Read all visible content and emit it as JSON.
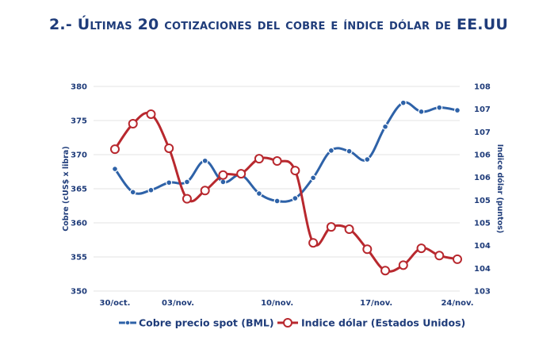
{
  "page": {
    "title_prefix": "2.- ",
    "title_main": "Últimas 20 cotizaciones del cobre e índice dólar de EE.UU"
  },
  "chart_data": {
    "type": "line",
    "title": "Últimas 20 cotizaciones del cobre e índice dólar de EE.UU",
    "x_tick_labels": [
      "30/oct.",
      "03/nov.",
      "10/nov.",
      "17/nov.",
      "24/nov."
    ],
    "x_tick_indices": [
      0,
      3.5,
      9,
      14.5,
      19
    ],
    "y_left": {
      "label": "Cobre (cUS$ x libra)",
      "range": [
        350,
        380
      ],
      "ticks": [
        350,
        355,
        360,
        365,
        370,
        375,
        380
      ],
      "tick_labels": [
        "350",
        "355",
        "360",
        "365",
        "370",
        "375",
        "380"
      ]
    },
    "y_right": {
      "label": "Indice dólar (puntos)",
      "range": [
        103,
        107.5
      ],
      "ticks": [
        103,
        103.5,
        104,
        104.5,
        105,
        105.5,
        106,
        106.5,
        107,
        107.5
      ],
      "tick_labels": [
        "103",
        "104",
        "104",
        "105",
        "105",
        "106",
        "106",
        "107",
        "107",
        "108"
      ]
    },
    "grid": true,
    "legend_position": "bottom",
    "series": [
      {
        "name": "Cobre precio spot (BML)",
        "axis": "left",
        "color": "#2e62a8",
        "marker": "filled-circle",
        "values": [
          367.9,
          364.5,
          364.8,
          365.9,
          366.0,
          369.1,
          366.0,
          367.0,
          364.3,
          363.2,
          363.6,
          366.6,
          370.6,
          370.5,
          369.3,
          374.1,
          377.6,
          376.3,
          376.9,
          376.5
        ]
      },
      {
        "name": "Indice dólar (Estados Unidos)",
        "axis": "right",
        "color": "#b8282e",
        "marker": "hollow-circle",
        "values": [
          106.12,
          106.68,
          106.89,
          106.14,
          105.03,
          105.21,
          105.55,
          105.58,
          105.91,
          105.86,
          105.65,
          104.06,
          104.41,
          104.36,
          103.92,
          103.45,
          103.57,
          103.94,
          103.78,
          103.7
        ]
      }
    ]
  }
}
